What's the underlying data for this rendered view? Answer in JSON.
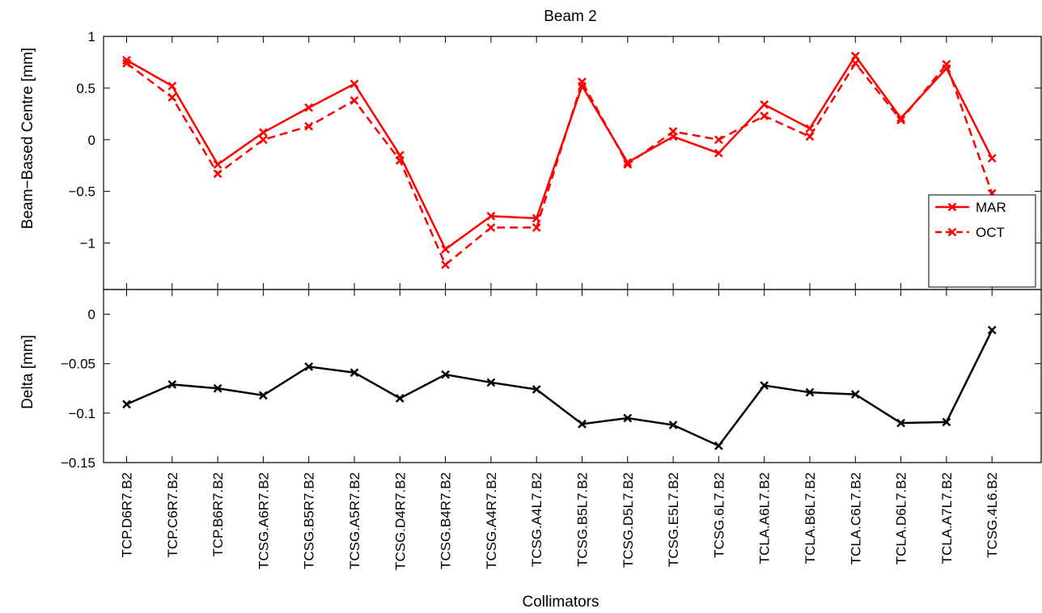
{
  "colors": {
    "mar": "#ff0000",
    "oct": "#ff0000",
    "delta": "#000000",
    "axes": "#000000",
    "background": "#ffffff"
  },
  "chart_data": [
    {
      "type": "line",
      "title": "Beam 2",
      "xlabel": "",
      "ylabel": "Beam−Based Centre [mm]",
      "ylim": [
        -1.45,
        1.0
      ],
      "yticks": [
        1,
        0.5,
        0,
        -0.5,
        -1
      ],
      "ytick_labels": [
        "1",
        "0.5",
        "0",
        "−0.5",
        "−1"
      ],
      "grid": false,
      "legend_position": "lower-right",
      "categories": [
        "TCP.D6R7.B2",
        "TCP.C6R7.B2",
        "TCP.B6R7.B2",
        "TCSG.A6R7.B2",
        "TCSG.B5R7.B2",
        "TCSG.A5R7.B2",
        "TCSG.D4R7.B2",
        "TCSG.B4R7.B2",
        "TCSG.A4R7.B2",
        "TCSG.A4L7.B2",
        "TCSG.B5L7.B2",
        "TCSG.D5L7.B2",
        "TCSG.E5L7.B2",
        "TCSG.6L7.B2",
        "TCLA.A6L7.B2",
        "TCLA.B6L7.B2",
        "TCLA.C6L7.B2",
        "TCLA.D6L7.B2",
        "TCLA.A7L7.B2",
        "TCSG.4L6.B2"
      ],
      "series": [
        {
          "name": "MAR",
          "line_style": "solid",
          "marker": "x",
          "values": [
            0.77,
            0.52,
            -0.24,
            0.07,
            0.31,
            0.54,
            -0.15,
            -1.06,
            -0.74,
            -0.76,
            0.52,
            -0.22,
            0.03,
            -0.13,
            0.34,
            0.11,
            0.81,
            0.21,
            0.69,
            -0.18
          ]
        },
        {
          "name": "OCT",
          "line_style": "dashed",
          "marker": "x",
          "values": [
            0.74,
            0.41,
            -0.33,
            0.0,
            0.13,
            0.38,
            -0.2,
            -1.21,
            -0.85,
            -0.85,
            0.56,
            -0.24,
            0.08,
            0.0,
            0.23,
            0.03,
            0.74,
            0.19,
            0.73,
            -0.52
          ]
        }
      ]
    },
    {
      "type": "line",
      "title": "",
      "xlabel": "Collimators",
      "ylabel": "Delta [mm]",
      "ylim": [
        -0.15,
        0.025
      ],
      "yticks": [
        0,
        -0.05,
        -0.1,
        -0.15
      ],
      "ytick_labels": [
        "0",
        "−0.05",
        "−0.1",
        "−0.15"
      ],
      "grid": false,
      "categories": [
        "TCP.D6R7.B2",
        "TCP.C6R7.B2",
        "TCP.B6R7.B2",
        "TCSG.A6R7.B2",
        "TCSG.B5R7.B2",
        "TCSG.A5R7.B2",
        "TCSG.D4R7.B2",
        "TCSG.B4R7.B2",
        "TCSG.A4R7.B2",
        "TCSG.A4L7.B2",
        "TCSG.B5L7.B2",
        "TCSG.D5L7.B2",
        "TCSG.E5L7.B2",
        "TCSG.6L7.B2",
        "TCLA.A6L7.B2",
        "TCLA.B6L7.B2",
        "TCLA.C6L7.B2",
        "TCLA.D6L7.B2",
        "TCLA.A7L7.B2",
        "TCSG.4L6.B2"
      ],
      "series": [
        {
          "marker": "x",
          "line_style": "solid",
          "values": [
            -0.091,
            -0.071,
            -0.075,
            -0.082,
            -0.053,
            -0.059,
            -0.085,
            -0.061,
            -0.069,
            -0.076,
            -0.111,
            -0.105,
            -0.112,
            -0.133,
            -0.072,
            -0.079,
            -0.081,
            -0.11,
            -0.109,
            -0.016
          ]
        }
      ]
    }
  ]
}
